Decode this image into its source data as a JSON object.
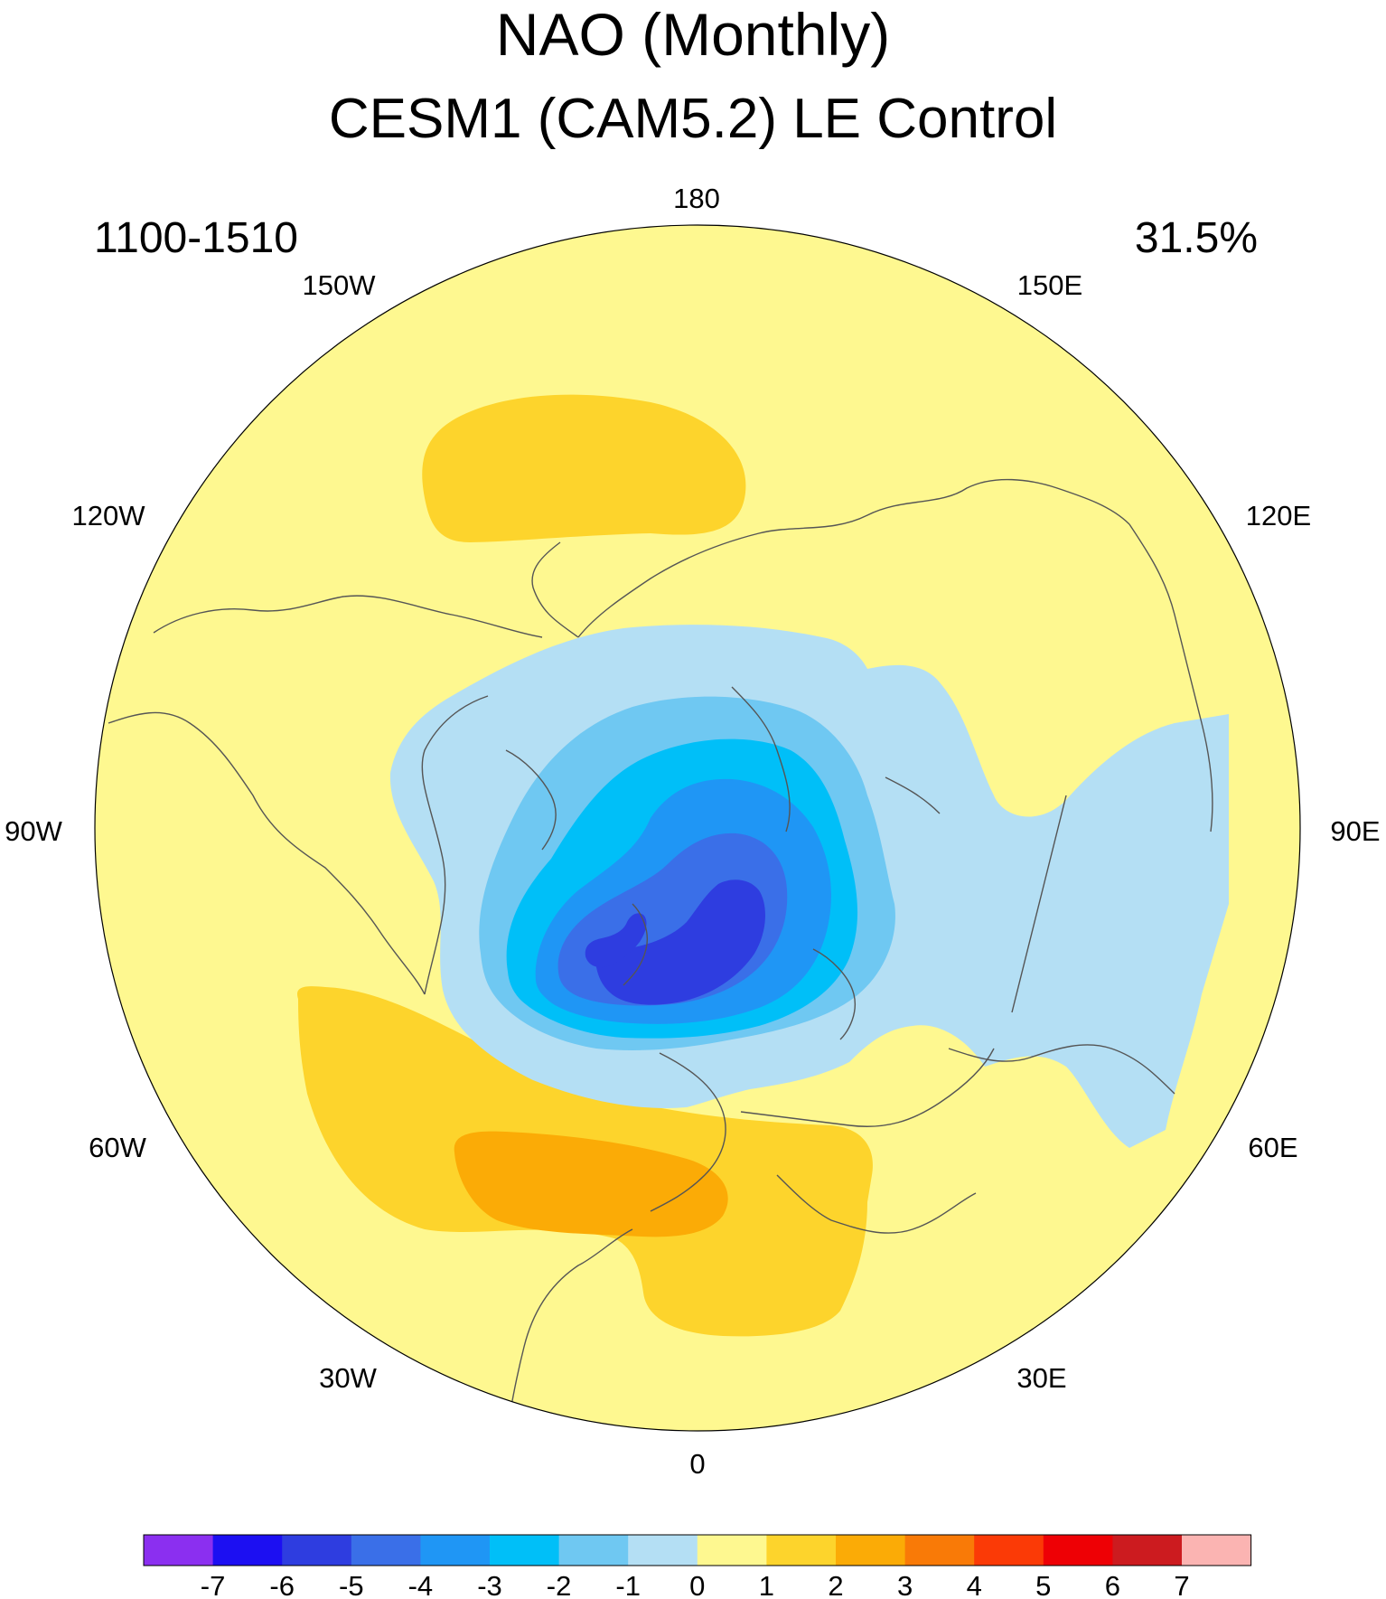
{
  "title": "NAO (Monthly)",
  "subtitle": "CESM1 (CAM5.2) LE Control",
  "period": "1100-1510",
  "variance_explained": "31.5%",
  "longitude_labels": {
    "top": "180",
    "upper_left": "150W",
    "upper_right": "150E",
    "left_upper": "120W",
    "right_upper": "120E",
    "left": "90W",
    "right": "90E",
    "left_lower": "60W",
    "right_lower": "60E",
    "lower_left": "30W",
    "lower_right": "30E",
    "bottom": "0"
  },
  "colorbar": {
    "labels": [
      "-7",
      "-6",
      "-5",
      "-4",
      "-3",
      "-2",
      "-1",
      "0",
      "1",
      "2",
      "3",
      "4",
      "5",
      "6",
      "7"
    ],
    "colors": [
      "#8b2ff0",
      "#1c0ff2",
      "#2e3de0",
      "#3a6fe8",
      "#1f96f5",
      "#00bff8",
      "#6fc8f2",
      "#b4dff4",
      "#fef890",
      "#fdd42c",
      "#fbab06",
      "#f97a07",
      "#fb3a06",
      "#ee0005",
      "#cc1b1f",
      "#fbb4b2"
    ]
  },
  "colors": {
    "ocean_background": "#fef890",
    "coastline": "#555555"
  }
}
